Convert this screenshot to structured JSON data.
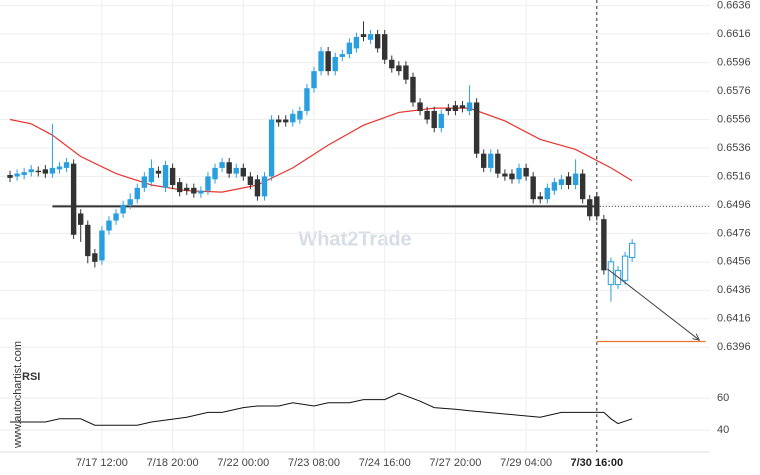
{
  "chart_data": {
    "type": "candlestick",
    "watermark": "What2Trade",
    "credit": "www.autochartist.com",
    "categories": [
      null,
      null,
      null,
      null,
      null,
      null,
      null,
      null,
      null,
      null,
      null,
      null,
      null,
      "7/17 12:00",
      null,
      null,
      null,
      null,
      null,
      null,
      null,
      null,
      null,
      "7/18 20:00",
      null,
      null,
      null,
      null,
      null,
      null,
      null,
      null,
      null,
      "7/22 00:00",
      null,
      null,
      null,
      null,
      null,
      null,
      null,
      null,
      null,
      "7/23 08:00",
      null,
      null,
      null,
      null,
      null,
      null,
      null,
      null,
      null,
      "7/24 16:00",
      null,
      null,
      null,
      null,
      null,
      null,
      null,
      null,
      null,
      "7/27 20:00",
      null,
      null,
      null,
      null,
      null,
      null,
      null,
      null,
      null,
      "7/29 04:00",
      null,
      null,
      null,
      null,
      null,
      null,
      null,
      null,
      null,
      "7/30 16:00",
      null,
      null,
      null,
      null,
      null
    ],
    "open": [
      0.6517,
      0.6516,
      0.6517,
      0.6519,
      0.652,
      0.6521,
      0.6518,
      0.6521,
      0.6522,
      0.6525,
      0.649,
      0.6482,
      0.6462,
      0.6457,
      0.6478,
      0.6485,
      0.649,
      0.6496,
      0.65,
      0.6508,
      0.6512,
      0.652,
      0.6508,
      0.6522,
      0.6512,
      0.6508,
      0.6508,
      0.6504,
      0.6506,
      0.6514,
      0.6522,
      0.6526,
      0.6518,
      0.6522,
      0.6516,
      0.6514,
      0.6502,
      0.6516,
      0.6556,
      0.6556,
      0.6554,
      0.6556,
      0.6562,
      0.6578,
      0.659,
      0.6604,
      0.659,
      0.66,
      0.6602,
      0.6606,
      0.6616,
      0.6612,
      0.6616,
      0.6616,
      0.6598,
      0.6594,
      0.6594,
      0.6586,
      0.6568,
      0.6562,
      0.6562,
      0.655,
      0.6564,
      0.6566,
      0.6566,
      0.6562,
      0.6568,
      0.6532,
      0.6522,
      0.6532,
      0.6518,
      0.6518,
      0.6514,
      0.6522,
      0.6516,
      0.6502,
      0.65,
      0.6506,
      0.651,
      0.6516,
      0.651,
      0.6518,
      0.65,
      0.6502,
      0.6486,
      0.644,
      0.644,
      0.6443,
      0.6459
    ],
    "high": [
      0.652,
      0.6521,
      0.6522,
      0.6524,
      0.6523,
      0.6524,
      0.6553,
      0.6526,
      0.6529,
      0.6528,
      0.6493,
      0.6485,
      0.6465,
      0.6481,
      0.6488,
      0.6493,
      0.6499,
      0.6504,
      0.6511,
      0.6519,
      0.6528,
      0.6523,
      0.6527,
      0.6525,
      0.6515,
      0.6511,
      0.6511,
      0.6509,
      0.6519,
      0.6525,
      0.6529,
      0.6529,
      0.6525,
      0.6525,
      0.6519,
      0.6517,
      0.6519,
      0.6559,
      0.6559,
      0.6559,
      0.6563,
      0.6565,
      0.6581,
      0.6593,
      0.6607,
      0.6607,
      0.6603,
      0.6605,
      0.6613,
      0.6617,
      0.6625,
      0.6619,
      0.6619,
      0.6619,
      0.6601,
      0.6597,
      0.6597,
      0.6589,
      0.6571,
      0.6565,
      0.6565,
      0.6563,
      0.6567,
      0.6569,
      0.6569,
      0.658,
      0.6571,
      0.6535,
      0.6535,
      0.6535,
      0.6521,
      0.6521,
      0.6525,
      0.6525,
      0.6519,
      0.6505,
      0.6511,
      0.6515,
      0.6517,
      0.6519,
      0.6528,
      0.6521,
      0.6503,
      0.6505,
      0.6489,
      0.6459,
      0.6453,
      0.6463,
      0.6472
    ],
    "low": [
      0.6512,
      0.6513,
      0.6514,
      0.6516,
      0.6516,
      0.6515,
      0.6515,
      0.6518,
      0.6519,
      0.6472,
      0.647,
      0.6455,
      0.6452,
      0.6454,
      0.6475,
      0.6482,
      0.6487,
      0.6493,
      0.6497,
      0.6505,
      0.6509,
      0.6515,
      0.6505,
      0.6507,
      0.6502,
      0.6503,
      0.6501,
      0.6501,
      0.6503,
      0.6511,
      0.6519,
      0.6515,
      0.6515,
      0.6513,
      0.6507,
      0.6499,
      0.6499,
      0.6513,
      0.6551,
      0.6551,
      0.6551,
      0.6553,
      0.6559,
      0.6575,
      0.6587,
      0.6587,
      0.6587,
      0.6597,
      0.6599,
      0.6603,
      0.6611,
      0.6609,
      0.6603,
      0.6595,
      0.6589,
      0.6587,
      0.6581,
      0.6565,
      0.6559,
      0.6553,
      0.6547,
      0.6547,
      0.6559,
      0.6559,
      0.6561,
      0.6559,
      0.6529,
      0.6519,
      0.6519,
      0.6515,
      0.6513,
      0.6511,
      0.6511,
      0.6513,
      0.6497,
      0.6497,
      0.6497,
      0.6503,
      0.6507,
      0.6507,
      0.6507,
      0.6497,
      0.6485,
      0.6485,
      0.6447,
      0.6428,
      0.6437,
      0.644,
      0.6456
    ],
    "close": [
      0.6515,
      0.6518,
      0.6519,
      0.6521,
      0.6519,
      0.6518,
      0.6522,
      0.6523,
      0.6526,
      0.6475,
      0.6482,
      0.646,
      0.6456,
      0.6478,
      0.6485,
      0.649,
      0.6496,
      0.65,
      0.6508,
      0.6516,
      0.6522,
      0.6518,
      0.6524,
      0.651,
      0.6505,
      0.6506,
      0.6504,
      0.6506,
      0.6516,
      0.6522,
      0.6526,
      0.6518,
      0.6522,
      0.6516,
      0.651,
      0.6502,
      0.6516,
      0.6556,
      0.6554,
      0.6554,
      0.656,
      0.6562,
      0.6578,
      0.659,
      0.6604,
      0.659,
      0.66,
      0.6602,
      0.661,
      0.6614,
      0.6614,
      0.6616,
      0.6606,
      0.6598,
      0.6592,
      0.659,
      0.6584,
      0.6568,
      0.6562,
      0.6556,
      0.655,
      0.656,
      0.6562,
      0.6562,
      0.6564,
      0.6568,
      0.6532,
      0.6522,
      0.6532,
      0.6518,
      0.6516,
      0.6514,
      0.6522,
      0.6516,
      0.65,
      0.65,
      0.6508,
      0.6512,
      0.6514,
      0.651,
      0.6518,
      0.65,
      0.6488,
      0.6488,
      0.645,
      0.6456,
      0.645,
      0.646,
      0.6469
    ],
    "up_color": "#2a9fe0",
    "down_color": "#333333",
    "hollow_from": 85,
    "ylim": [
      0.6387,
      0.664
    ],
    "yticks": [
      0.6636,
      0.6616,
      0.6596,
      0.6576,
      0.6556,
      0.6536,
      0.6516,
      0.6496,
      0.6476,
      0.6456,
      0.6436,
      0.6416,
      0.6396
    ],
    "grid": true,
    "moving_average": {
      "color": "#e8332c",
      "x": [
        0,
        3,
        6,
        10,
        15,
        20,
        25,
        30,
        35,
        40,
        45,
        50,
        55,
        60,
        65,
        70,
        75,
        80,
        85,
        88
      ],
      "values": [
        0.6556,
        0.6553,
        0.6545,
        0.653,
        0.6518,
        0.651,
        0.6506,
        0.6505,
        0.651,
        0.6522,
        0.6538,
        0.6552,
        0.6561,
        0.6564,
        0.6564,
        0.6555,
        0.6542,
        0.6535,
        0.6522,
        0.6513
      ]
    },
    "support_level": {
      "value": 0.6495,
      "from": 6,
      "to": 83,
      "color": "#333333"
    },
    "now_index": 83,
    "target": {
      "value": 0.64,
      "from": 83,
      "to": 98.4,
      "color": "#e8772c"
    },
    "forecast_arrow": {
      "x": [
        84.5,
        97.5
      ],
      "values": [
        0.6451,
        0.6401
      ],
      "color": "#444444"
    },
    "rsi": {
      "label": "RSI",
      "ylim": [
        30,
        80
      ],
      "yticks": [
        60,
        40
      ],
      "x": [
        0,
        5,
        7,
        10,
        12,
        18,
        20,
        25,
        28,
        30,
        33,
        35,
        38,
        40,
        43,
        45,
        48,
        50,
        53,
        55,
        58,
        60,
        63,
        65,
        70,
        75,
        78,
        80,
        84,
        85,
        86,
        88
      ],
      "values": [
        45,
        45,
        47,
        47,
        43,
        43,
        45,
        48,
        51,
        51,
        54,
        55,
        55,
        57,
        55,
        57,
        57,
        59,
        59,
        63,
        58,
        54,
        53,
        52,
        50,
        48,
        51,
        51,
        51,
        47,
        44,
        47
      ]
    }
  }
}
